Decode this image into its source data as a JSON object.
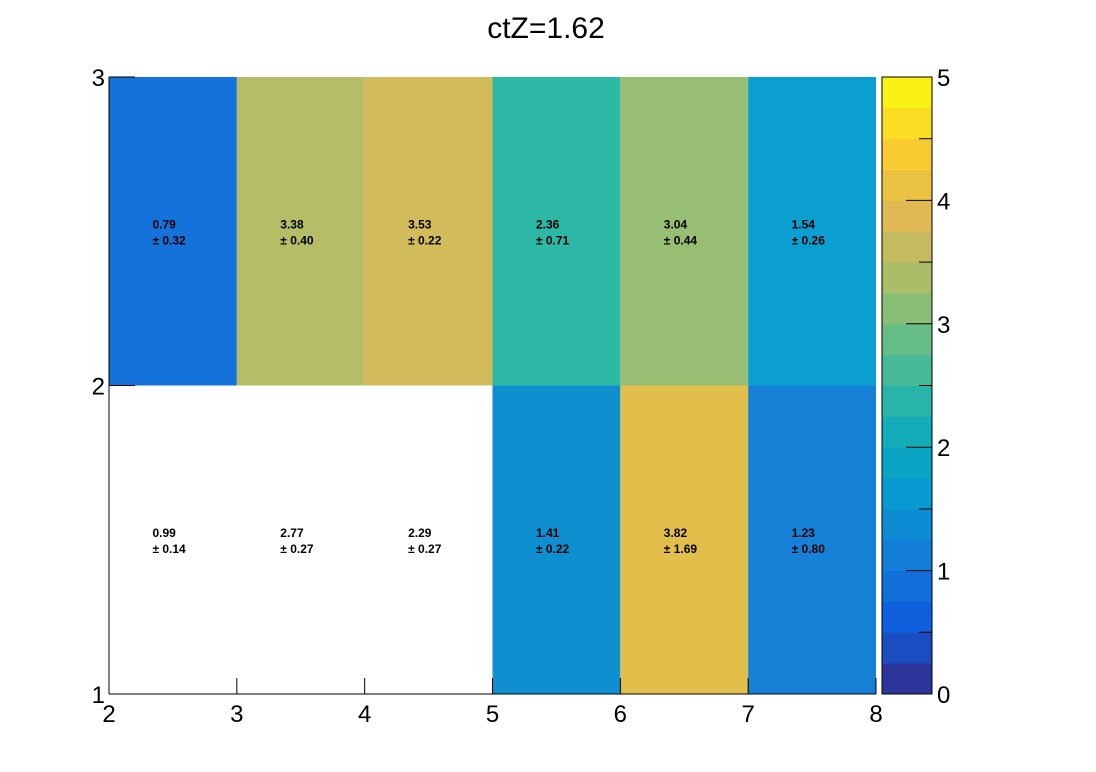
{
  "chart_data": {
    "type": "heatmap",
    "title": "ctZ=1.62",
    "xlabel": "",
    "ylabel": "",
    "x_edges": [
      2,
      3,
      4,
      5,
      6,
      7,
      8
    ],
    "y_edges": [
      1,
      2,
      3
    ],
    "xlim": [
      2,
      8
    ],
    "ylim": [
      1,
      3
    ],
    "x_ticks": [
      "2",
      "3",
      "4",
      "5",
      "6",
      "7",
      "8"
    ],
    "y_ticks": [
      "1",
      "2",
      "3"
    ],
    "colorbar": {
      "min": 0,
      "max": 5,
      "ticks": [
        "0",
        "1",
        "2",
        "3",
        "4",
        "5"
      ],
      "palette": "parula"
    },
    "rows": [
      {
        "y_bin": [
          1,
          2
        ],
        "values": [
          0.99,
          2.77,
          2.29,
          1.41,
          3.82,
          1.23
        ],
        "errors": [
          0.14,
          0.27,
          0.27,
          0.22,
          1.69,
          0.8
        ],
        "value_labels": [
          "0.99",
          "2.77",
          "2.29",
          "1.41",
          "3.82",
          "1.23"
        ],
        "error_labels": [
          "± 0.14",
          "± 0.27",
          "± 0.27",
          "± 0.22",
          "± 1.69",
          "± 0.80"
        ]
      },
      {
        "y_bin": [
          2,
          3
        ],
        "values": [
          0.79,
          3.38,
          3.53,
          2.36,
          3.04,
          1.54
        ],
        "errors": [
          0.32,
          0.4,
          0.22,
          0.71,
          0.44,
          0.26
        ],
        "value_labels": [
          "0.79",
          "3.38",
          "3.53",
          "2.36",
          "3.04",
          "1.54"
        ],
        "error_labels": [
          "± 0.32",
          "± 0.40",
          "± 0.22",
          "± 0.71",
          "± 0.44",
          "± 0.26"
        ]
      }
    ],
    "cell_colors": [
      [
        "#ffffff",
        "#ffffff",
        "#ffffff",
        "#108fd0",
        "#e2bf4b",
        "#1680d6"
      ],
      [
        "#1472da",
        "#b5bd67",
        "#d2bb5b",
        "#2db8a5",
        "#98be74",
        "#0b9fd1"
      ]
    ]
  }
}
